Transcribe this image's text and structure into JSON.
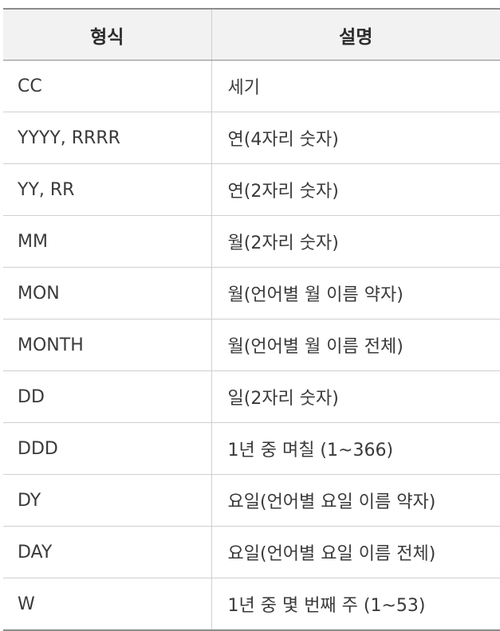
{
  "table": {
    "headers": [
      "형식",
      "설명"
    ],
    "rows": [
      [
        "CC",
        "세기"
      ],
      [
        "YYYY, RRRR",
        "연(4자리 숫자)"
      ],
      [
        "YY, RR",
        "연(2자리 숫자)"
      ],
      [
        "MM",
        "월(2자리 숫자)"
      ],
      [
        "MON",
        "월(언어별 월 이름 약자)"
      ],
      [
        "MONTH",
        "월(언어별 월 이름 전체)"
      ],
      [
        "DD",
        "일(2자리 숫자)"
      ],
      [
        "DDD",
        "1년 중 며칠 (1~366)"
      ],
      [
        "DY",
        "요일(언어별 요일 이름 약자)"
      ],
      [
        "DAY",
        "요일(언어별 요일 이름 전체)"
      ],
      [
        "W",
        "1년 중 몇 번째 주 (1~53)"
      ]
    ]
  }
}
